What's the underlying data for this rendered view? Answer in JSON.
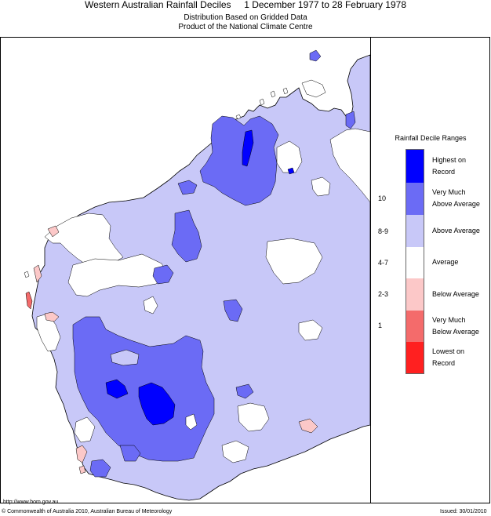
{
  "header": {
    "title": "Western Australian Rainfall Deciles     1 December 1977 to 28 February 1978",
    "subtitle1": "Distribution Based on Gridded Data",
    "subtitle2": "Product of the National Climate Centre"
  },
  "legend": {
    "title": "Rainfall Decile Ranges",
    "items": [
      {
        "label_line1": "Highest on",
        "label_line2": "Record",
        "decile": "",
        "color": "#0000ff"
      },
      {
        "label_line1": "Very Much",
        "label_line2": "Above Average",
        "decile": "10",
        "color": "#6b6bf5"
      },
      {
        "label_line1": "Above Average",
        "label_line2": "",
        "decile": "8-9",
        "color": "#c8c8f8"
      },
      {
        "label_line1": "Average",
        "label_line2": "",
        "decile": "4-7",
        "color": "#ffffff"
      },
      {
        "label_line1": "Below Average",
        "label_line2": "",
        "decile": "2-3",
        "color": "#fcc8c8"
      },
      {
        "label_line1": "Very Much",
        "label_line2": "Below Average",
        "decile": "1",
        "color": "#f46b6b"
      },
      {
        "label_line1": "Lowest on",
        "label_line2": "Record",
        "decile": "",
        "color": "#ff2020"
      }
    ]
  },
  "footer": {
    "url": "http://www.bom.gov.au",
    "copyright": "© Commonwealth of Australia 2010, Australian Bureau of Meteorology",
    "issued": "Issued: 30/01/2010"
  }
}
